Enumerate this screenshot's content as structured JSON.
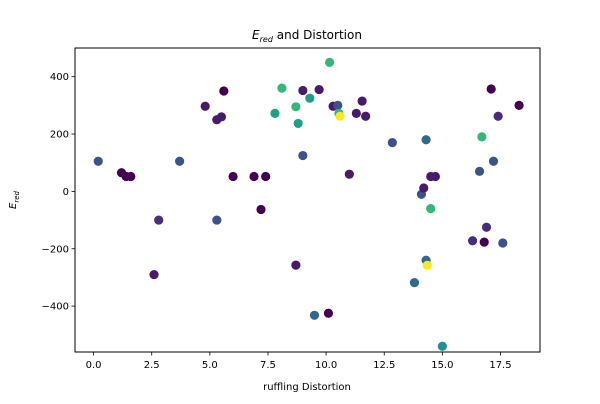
{
  "chart_data": {
    "type": "scatter",
    "title": "E_red and Distortion",
    "title_parts": {
      "symbol": "E",
      "subscript": "red",
      "rest": " and Distortion"
    },
    "xlabel": "ruffling Distortion",
    "ylabel": "E_red",
    "ylabel_parts": {
      "symbol": "E",
      "subscript": "red"
    },
    "xlim": [
      -0.8,
      19.2
    ],
    "ylim": [
      -560,
      500
    ],
    "xticks": [
      0.0,
      2.5,
      5.0,
      7.5,
      10.0,
      12.5,
      15.0,
      17.5
    ],
    "xtick_labels": [
      "0.0",
      "2.5",
      "5.0",
      "7.5",
      "10.0",
      "12.5",
      "15.0",
      "17.5"
    ],
    "yticks": [
      -400,
      -200,
      0,
      200,
      400
    ],
    "ytick_labels": [
      "−400",
      "−200",
      "0",
      "200",
      "400"
    ],
    "grid": false,
    "legend": false,
    "colormap": "viridis",
    "points": [
      {
        "x": 0.2,
        "y": 105,
        "color": "#3b528b"
      },
      {
        "x": 1.2,
        "y": 65,
        "color": "#440154"
      },
      {
        "x": 1.4,
        "y": 52,
        "color": "#440154"
      },
      {
        "x": 1.6,
        "y": 52,
        "color": "#440154"
      },
      {
        "x": 2.6,
        "y": -290,
        "color": "#481a6c"
      },
      {
        "x": 2.8,
        "y": -100,
        "color": "#472d7b"
      },
      {
        "x": 3.7,
        "y": 105,
        "color": "#3b528b"
      },
      {
        "x": 4.8,
        "y": 297,
        "color": "#481a6c"
      },
      {
        "x": 5.3,
        "y": 250,
        "color": "#481a6c"
      },
      {
        "x": 5.3,
        "y": -100,
        "color": "#3b528b"
      },
      {
        "x": 5.5,
        "y": 260,
        "color": "#481a6c"
      },
      {
        "x": 5.6,
        "y": 350,
        "color": "#440154"
      },
      {
        "x": 6.0,
        "y": 52,
        "color": "#440154"
      },
      {
        "x": 6.9,
        "y": 52,
        "color": "#440154"
      },
      {
        "x": 7.2,
        "y": -63,
        "color": "#440154"
      },
      {
        "x": 7.4,
        "y": 52,
        "color": "#440154"
      },
      {
        "x": 7.8,
        "y": 272,
        "color": "#1fa188"
      },
      {
        "x": 8.1,
        "y": 360,
        "color": "#35b779"
      },
      {
        "x": 8.7,
        "y": 295,
        "color": "#35b779"
      },
      {
        "x": 8.7,
        "y": -257,
        "color": "#481a6c"
      },
      {
        "x": 8.8,
        "y": 237,
        "color": "#1f9e89"
      },
      {
        "x": 9.0,
        "y": 125,
        "color": "#3b528b"
      },
      {
        "x": 9.0,
        "y": 352,
        "color": "#481a6c"
      },
      {
        "x": 9.3,
        "y": 325,
        "color": "#1f9e89"
      },
      {
        "x": 9.5,
        "y": -432,
        "color": "#31688e"
      },
      {
        "x": 9.7,
        "y": 355,
        "color": "#481a6c"
      },
      {
        "x": 10.1,
        "y": -425,
        "color": "#440154"
      },
      {
        "x": 10.15,
        "y": 450,
        "color": "#35b779"
      },
      {
        "x": 10.3,
        "y": 297,
        "color": "#481a6c"
      },
      {
        "x": 10.5,
        "y": 300,
        "color": "#3b528b"
      },
      {
        "x": 10.55,
        "y": 272,
        "color": "#35b779"
      },
      {
        "x": 10.6,
        "y": 262,
        "color": "#fde725"
      },
      {
        "x": 11.0,
        "y": 60,
        "color": "#481a6c"
      },
      {
        "x": 11.3,
        "y": 272,
        "color": "#481a6c"
      },
      {
        "x": 11.55,
        "y": 315,
        "color": "#481a6c"
      },
      {
        "x": 11.7,
        "y": 262,
        "color": "#481a6c"
      },
      {
        "x": 12.85,
        "y": 170,
        "color": "#3b528b"
      },
      {
        "x": 13.8,
        "y": -318,
        "color": "#31688e"
      },
      {
        "x": 14.1,
        "y": -10,
        "color": "#3b528b"
      },
      {
        "x": 14.2,
        "y": 12,
        "color": "#481a6c"
      },
      {
        "x": 14.3,
        "y": 180,
        "color": "#31688e"
      },
      {
        "x": 14.3,
        "y": -240,
        "color": "#31688e"
      },
      {
        "x": 14.35,
        "y": -258,
        "color": "#fde725"
      },
      {
        "x": 14.5,
        "y": 52,
        "color": "#481a6c"
      },
      {
        "x": 14.5,
        "y": -60,
        "color": "#35b779"
      },
      {
        "x": 14.7,
        "y": 52,
        "color": "#481a6c"
      },
      {
        "x": 15.0,
        "y": -540,
        "color": "#21918c"
      },
      {
        "x": 16.3,
        "y": -172,
        "color": "#472d7b"
      },
      {
        "x": 16.6,
        "y": 70,
        "color": "#3b528b"
      },
      {
        "x": 16.7,
        "y": 190,
        "color": "#35b779"
      },
      {
        "x": 16.8,
        "y": -177,
        "color": "#440154"
      },
      {
        "x": 16.9,
        "y": -125,
        "color": "#472d7b"
      },
      {
        "x": 17.1,
        "y": 357,
        "color": "#440154"
      },
      {
        "x": 17.2,
        "y": 105,
        "color": "#3b528b"
      },
      {
        "x": 17.4,
        "y": 262,
        "color": "#472d7b"
      },
      {
        "x": 17.6,
        "y": -180,
        "color": "#3b528b"
      },
      {
        "x": 18.3,
        "y": 300,
        "color": "#440154"
      }
    ]
  }
}
